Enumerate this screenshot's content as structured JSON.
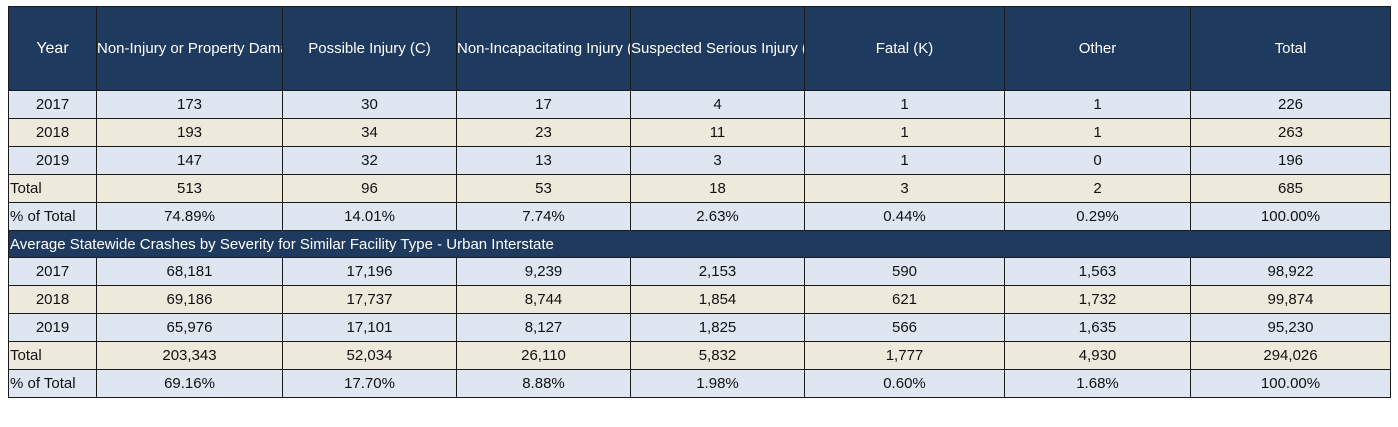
{
  "headers": [
    "Year",
    "Non-Injury or Property Damage Only",
    "Possible Injury (C)",
    "Non-Incapacitating Injury (B)",
    "Suspected Serious Injury (A)",
    "Fatal (K)",
    "Other",
    "Total"
  ],
  "group1_rows": [
    [
      "2017",
      "173",
      "30",
      "17",
      "4",
      "1",
      "1",
      "226"
    ],
    [
      "2018",
      "193",
      "34",
      "23",
      "11",
      "1",
      "1",
      "263"
    ],
    [
      "2019",
      "147",
      "32",
      "13",
      "3",
      "1",
      "0",
      "196"
    ],
    [
      "Total",
      "513",
      "96",
      "53",
      "18",
      "3",
      "2",
      "685"
    ],
    [
      "% of Total",
      "74.89%",
      "14.01%",
      "7.74%",
      "2.63%",
      "0.44%",
      "0.29%",
      "100.00%"
    ]
  ],
  "section_title": "Average Statewide Crashes by Severity for Similar Facility Type - Urban Interstate",
  "group2_rows": [
    [
      "2017",
      "68,181",
      "17,196",
      "9,239",
      "2,153",
      "590",
      "1,563",
      "98,922"
    ],
    [
      "2018",
      "69,186",
      "17,737",
      "8,744",
      "1,854",
      "621",
      "1,732",
      "99,874"
    ],
    [
      "2019",
      "65,976",
      "17,101",
      "8,127",
      "1,825",
      "566",
      "1,635",
      "95,230"
    ],
    [
      "Total",
      "203,343",
      "52,034",
      "26,110",
      "5,832",
      "1,777",
      "4,930",
      "294,026"
    ],
    [
      "% of Total",
      "69.16%",
      "17.70%",
      "8.88%",
      "1.98%",
      "0.60%",
      "1.68%",
      "100.00%"
    ]
  ],
  "colors": {
    "header_bg": "#1f3a5f",
    "row_blue": "#dde6f1",
    "row_beige": "#eeeadb"
  }
}
